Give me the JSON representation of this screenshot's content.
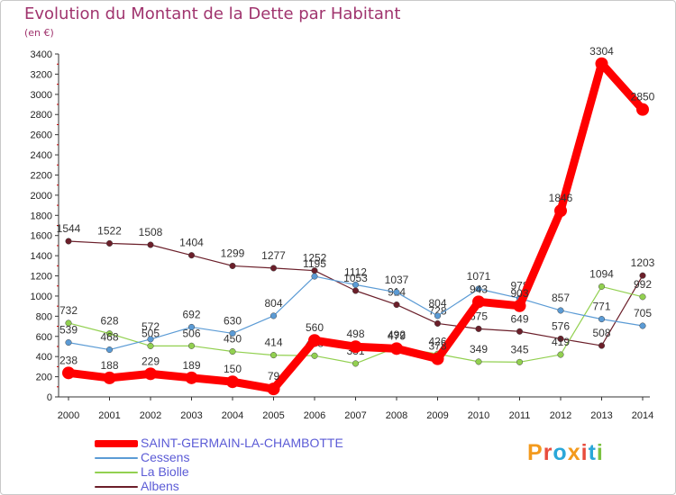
{
  "chart_data": {
    "type": "line",
    "title": "Evolution du Montant de la Dette par Habitant",
    "subtitle": "(en €)",
    "x": [
      "2000",
      "2001",
      "2002",
      "2003",
      "2004",
      "2005",
      "2006",
      "2007",
      "2008",
      "2009",
      "2010",
      "2011",
      "2012",
      "2013",
      "2014"
    ],
    "ylim": [
      0,
      3400
    ],
    "yticks": [
      0,
      200,
      400,
      600,
      800,
      1000,
      1200,
      1400,
      1600,
      1800,
      2000,
      2200,
      2400,
      2600,
      2800,
      3000,
      3200,
      3400
    ],
    "grid": false,
    "legend_position": "bottom-left",
    "series": [
      {
        "name": "SAINT-GERMAIN-LA-CHAMBOTTE",
        "color": "#ff0000",
        "values": [
          238,
          188,
          229,
          189,
          150,
          79,
          560,
          498,
          479,
          378,
          943,
          903,
          1846,
          3304,
          2850
        ],
        "labels": [
          "238",
          "188",
          "229",
          "189",
          "150",
          "79",
          "560",
          "498",
          "479",
          "378",
          "943",
          "903",
          "1846",
          "3304",
          "2850"
        ]
      },
      {
        "name": "Cessens",
        "color": "#5b9bd5",
        "values": [
          539,
          468,
          572,
          692,
          630,
          804,
          1195,
          1112,
          1037,
          804,
          1071,
          978,
          857,
          771,
          705
        ],
        "labels": [
          "539",
          "468",
          "572",
          "692",
          "630",
          "804",
          "1195",
          "1112",
          "1037",
          "804",
          "1071",
          "978",
          "857",
          "771",
          "705"
        ]
      },
      {
        "name": "La Biolle",
        "color": "#92d050",
        "values": [
          732,
          628,
          505,
          506,
          450,
          414,
          408,
          331,
          492,
          426,
          349,
          345,
          419,
          1094,
          992
        ],
        "labels": [
          "732",
          "628",
          "505",
          "506",
          "450",
          "414",
          "408",
          "331",
          "492",
          "426",
          "349",
          "345",
          "419",
          "1094",
          "992"
        ]
      },
      {
        "name": "Albens",
        "color": "#6b1f2a",
        "values": [
          1544,
          1522,
          1508,
          1404,
          1299,
          1277,
          1252,
          1053,
          914,
          728,
          675,
          649,
          576,
          508,
          1203
        ],
        "labels": [
          "1544",
          "1522",
          "1508",
          "1404",
          "1299",
          "1277",
          "1252",
          "1053",
          "914",
          "728",
          "675",
          "649",
          "576",
          "508",
          "1203"
        ]
      }
    ]
  },
  "logo": {
    "text": "Proxiti",
    "letter_colors": [
      "#f39a1d",
      "#e84c3d",
      "#2aa7d9",
      "#f39a1d",
      "#e84c3d",
      "#2aa7d9",
      "#7cc242"
    ]
  }
}
